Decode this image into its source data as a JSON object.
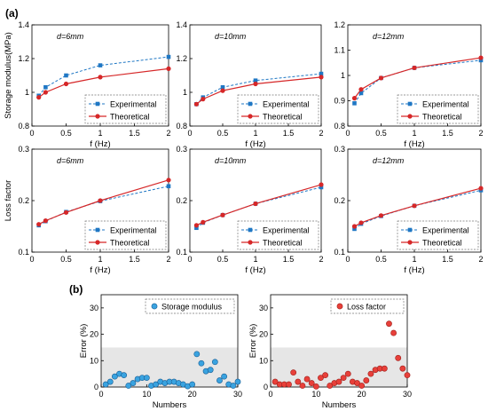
{
  "panel_labels": {
    "a": "(a)",
    "b": "(b)"
  },
  "colors": {
    "experimental": "#1f77c4",
    "theoretical": "#d62728",
    "storage_fill": "#3aa3e0",
    "loss_fill": "#e8403a",
    "band": "#e6e6e6"
  },
  "chart_data": [
    {
      "id": "sm6",
      "type": "line",
      "annotation": "d=6mm",
      "xlabel": "f (Hz)",
      "ylabel": "Storage modulus(MPa)",
      "xlim": [
        0,
        2
      ],
      "ylim": [
        0.8,
        1.4
      ],
      "xticks": [
        0,
        0.5,
        1,
        1.5,
        2
      ],
      "yticks": [
        0.8,
        1,
        1.2,
        1.4
      ],
      "xtick_labels": [
        "0",
        "0.5",
        "1",
        "1.5",
        "2"
      ],
      "ytick_labels": [
        "0.8",
        "1",
        "1.2",
        "1.4"
      ],
      "legend": [
        "Experimental",
        "Theoretical"
      ],
      "legend_position": "bottom-right",
      "series": [
        {
          "name": "Experimental",
          "x": [
            0.1,
            0.2,
            0.5,
            1,
            2
          ],
          "y": [
            0.98,
            1.03,
            1.1,
            1.16,
            1.21
          ]
        },
        {
          "name": "Theoretical",
          "x": [
            0.1,
            0.2,
            0.5,
            1,
            2
          ],
          "y": [
            0.97,
            1.0,
            1.05,
            1.09,
            1.14
          ]
        }
      ]
    },
    {
      "id": "sm10",
      "type": "line",
      "annotation": "d=10mm",
      "xlabel": "f (Hz)",
      "ylabel": "",
      "xlim": [
        0,
        2
      ],
      "ylim": [
        0.8,
        1.4
      ],
      "xticks": [
        0,
        0.5,
        1,
        1.5,
        2
      ],
      "yticks": [
        0.8,
        1,
        1.2,
        1.4
      ],
      "xtick_labels": [
        "0",
        "0.5",
        "1",
        "1.5",
        "2"
      ],
      "ytick_labels": [
        "0.8",
        "1",
        "1.2",
        "1.4"
      ],
      "legend": [
        "Experimental",
        "Theoretical"
      ],
      "legend_position": "bottom-right",
      "series": [
        {
          "name": "Experimental",
          "x": [
            0.1,
            0.2,
            0.5,
            1,
            2
          ],
          "y": [
            0.93,
            0.97,
            1.03,
            1.07,
            1.11
          ]
        },
        {
          "name": "Theoretical",
          "x": [
            0.1,
            0.2,
            0.5,
            1,
            2
          ],
          "y": [
            0.93,
            0.96,
            1.01,
            1.05,
            1.09
          ]
        }
      ]
    },
    {
      "id": "sm12",
      "type": "line",
      "annotation": "d=12mm",
      "xlabel": "f (Hz)",
      "ylabel": "",
      "xlim": [
        0,
        2
      ],
      "ylim": [
        0.8,
        1.2
      ],
      "xticks": [
        0,
        0.5,
        1,
        1.5,
        2
      ],
      "yticks": [
        0.8,
        0.9,
        1,
        1.1,
        1.2
      ],
      "xtick_labels": [
        "0",
        "0.5",
        "1",
        "1.5",
        "2"
      ],
      "ytick_labels": [
        "0.8",
        "0.9",
        "1",
        "1.1",
        "1.2"
      ],
      "legend": [
        "Experimental",
        "Theoretical"
      ],
      "legend_position": "bottom-right",
      "series": [
        {
          "name": "Experimental",
          "x": [
            0.1,
            0.2,
            0.5,
            1,
            2
          ],
          "y": [
            0.89,
            0.93,
            0.99,
            1.03,
            1.06
          ]
        },
        {
          "name": "Theoretical",
          "x": [
            0.1,
            0.2,
            0.5,
            1,
            2
          ],
          "y": [
            0.91,
            0.945,
            0.99,
            1.03,
            1.07
          ]
        }
      ]
    },
    {
      "id": "lf6",
      "type": "line",
      "annotation": "d=6mm",
      "xlabel": "f (Hz)",
      "ylabel": "Loss factor",
      "xlim": [
        0,
        2
      ],
      "ylim": [
        0.1,
        0.3
      ],
      "xticks": [
        0,
        0.5,
        1,
        1.5,
        2
      ],
      "yticks": [
        0.1,
        0.2,
        0.3
      ],
      "xtick_labels": [
        "0",
        "0.5",
        "1",
        "1.5",
        "2"
      ],
      "ytick_labels": [
        "0.1",
        "0.2",
        "0.3"
      ],
      "legend": [
        "Experimental",
        "Theoretical"
      ],
      "legend_position": "bottom-right",
      "series": [
        {
          "name": "Experimental",
          "x": [
            0.1,
            0.2,
            0.5,
            1,
            2
          ],
          "y": [
            0.152,
            0.16,
            0.178,
            0.199,
            0.228
          ]
        },
        {
          "name": "Theoretical",
          "x": [
            0.1,
            0.2,
            0.5,
            1,
            2
          ],
          "y": [
            0.154,
            0.161,
            0.177,
            0.2,
            0.24
          ]
        }
      ]
    },
    {
      "id": "lf10",
      "type": "line",
      "annotation": "d=10mm",
      "xlabel": "f (Hz)",
      "ylabel": "",
      "xlim": [
        0,
        2
      ],
      "ylim": [
        0.1,
        0.3
      ],
      "xticks": [
        0,
        0.5,
        1,
        1.5,
        2
      ],
      "yticks": [
        0.1,
        0.2,
        0.3
      ],
      "xtick_labels": [
        "0",
        "0.5",
        "1",
        "1.5",
        "2"
      ],
      "ytick_labels": [
        "0.1",
        "0.2",
        "0.3"
      ],
      "legend": [
        "Experimental",
        "Theoretical"
      ],
      "legend_position": "bottom-right",
      "series": [
        {
          "name": "Experimental",
          "x": [
            0.1,
            0.2,
            0.5,
            1,
            2
          ],
          "y": [
            0.147,
            0.157,
            0.172,
            0.194,
            0.226
          ]
        },
        {
          "name": "Theoretical",
          "x": [
            0.1,
            0.2,
            0.5,
            1,
            2
          ],
          "y": [
            0.152,
            0.158,
            0.172,
            0.194,
            0.231
          ]
        }
      ]
    },
    {
      "id": "lf12",
      "type": "line",
      "annotation": "d=12mm",
      "xlabel": "f (Hz)",
      "ylabel": "",
      "xlim": [
        0,
        2
      ],
      "ylim": [
        0.1,
        0.3
      ],
      "xticks": [
        0,
        0.5,
        1,
        1.5,
        2
      ],
      "yticks": [
        0.1,
        0.2,
        0.3
      ],
      "xtick_labels": [
        "0",
        "0.5",
        "1",
        "1.5",
        "2"
      ],
      "ytick_labels": [
        "0.1",
        "0.2",
        "0.3"
      ],
      "legend": [
        "Experimental",
        "Theoretical"
      ],
      "legend_position": "bottom-right",
      "series": [
        {
          "name": "Experimental",
          "x": [
            0.1,
            0.2,
            0.5,
            1,
            2
          ],
          "y": [
            0.145,
            0.155,
            0.17,
            0.19,
            0.22
          ]
        },
        {
          "name": "Theoretical",
          "x": [
            0.1,
            0.2,
            0.5,
            1,
            2
          ],
          "y": [
            0.15,
            0.157,
            0.171,
            0.19,
            0.224
          ]
        }
      ]
    },
    {
      "id": "err_sm",
      "type": "scatter",
      "xlabel": "Numbers",
      "ylabel": "Error (%)",
      "xlim": [
        0,
        30
      ],
      "ylim": [
        0,
        35
      ],
      "xticks": [
        0,
        10,
        20,
        30
      ],
      "yticks": [
        0,
        10,
        20,
        30
      ],
      "xtick_labels": [
        "0",
        "10",
        "20",
        "30"
      ],
      "ytick_labels": [
        "0",
        "10",
        "20",
        "30"
      ],
      "shaded_band": [
        0,
        15
      ],
      "legend": [
        "Storage modulus"
      ],
      "legend_position": "top-right",
      "series": [
        {
          "name": "Storage modulus",
          "x": [
            1,
            2,
            3,
            4,
            5,
            6,
            7,
            8,
            9,
            10,
            11,
            12,
            13,
            14,
            15,
            16,
            17,
            18,
            19,
            20,
            21,
            22,
            23,
            24,
            25,
            26,
            27,
            28,
            29,
            30
          ],
          "y": [
            1,
            2,
            4,
            5,
            4.5,
            0.5,
            1.5,
            3,
            3.5,
            3.5,
            0.5,
            1,
            2,
            1.5,
            2,
            2,
            1.5,
            1,
            0.3,
            1,
            12.5,
            9,
            6,
            6.5,
            9.5,
            2.5,
            4,
            1,
            0.5,
            2
          ]
        }
      ]
    },
    {
      "id": "err_lf",
      "type": "scatter",
      "xlabel": "Numbers",
      "ylabel": "Error (%)",
      "xlim": [
        0,
        30
      ],
      "ylim": [
        0,
        35
      ],
      "xticks": [
        0,
        10,
        20,
        30
      ],
      "yticks": [
        0,
        10,
        20,
        30
      ],
      "xtick_labels": [
        "0",
        "10",
        "20",
        "30"
      ],
      "ytick_labels": [
        "0",
        "10",
        "20",
        "30"
      ],
      "shaded_band": [
        0,
        15
      ],
      "legend": [
        "Loss factor"
      ],
      "legend_position": "top-right",
      "series": [
        {
          "name": "Loss factor",
          "x": [
            1,
            2,
            3,
            4,
            5,
            6,
            7,
            8,
            9,
            10,
            11,
            12,
            13,
            14,
            15,
            16,
            17,
            18,
            19,
            20,
            21,
            22,
            23,
            24,
            25,
            26,
            27,
            28,
            29,
            30
          ],
          "y": [
            2,
            1,
            1,
            1,
            5.5,
            2,
            0.5,
            3,
            1.5,
            0.2,
            3.5,
            4.5,
            0.5,
            1.5,
            2,
            3.5,
            5,
            2,
            1.5,
            0.5,
            2.5,
            5,
            6.5,
            7,
            7,
            24,
            20.5,
            11,
            7,
            4.5
          ]
        }
      ]
    }
  ]
}
